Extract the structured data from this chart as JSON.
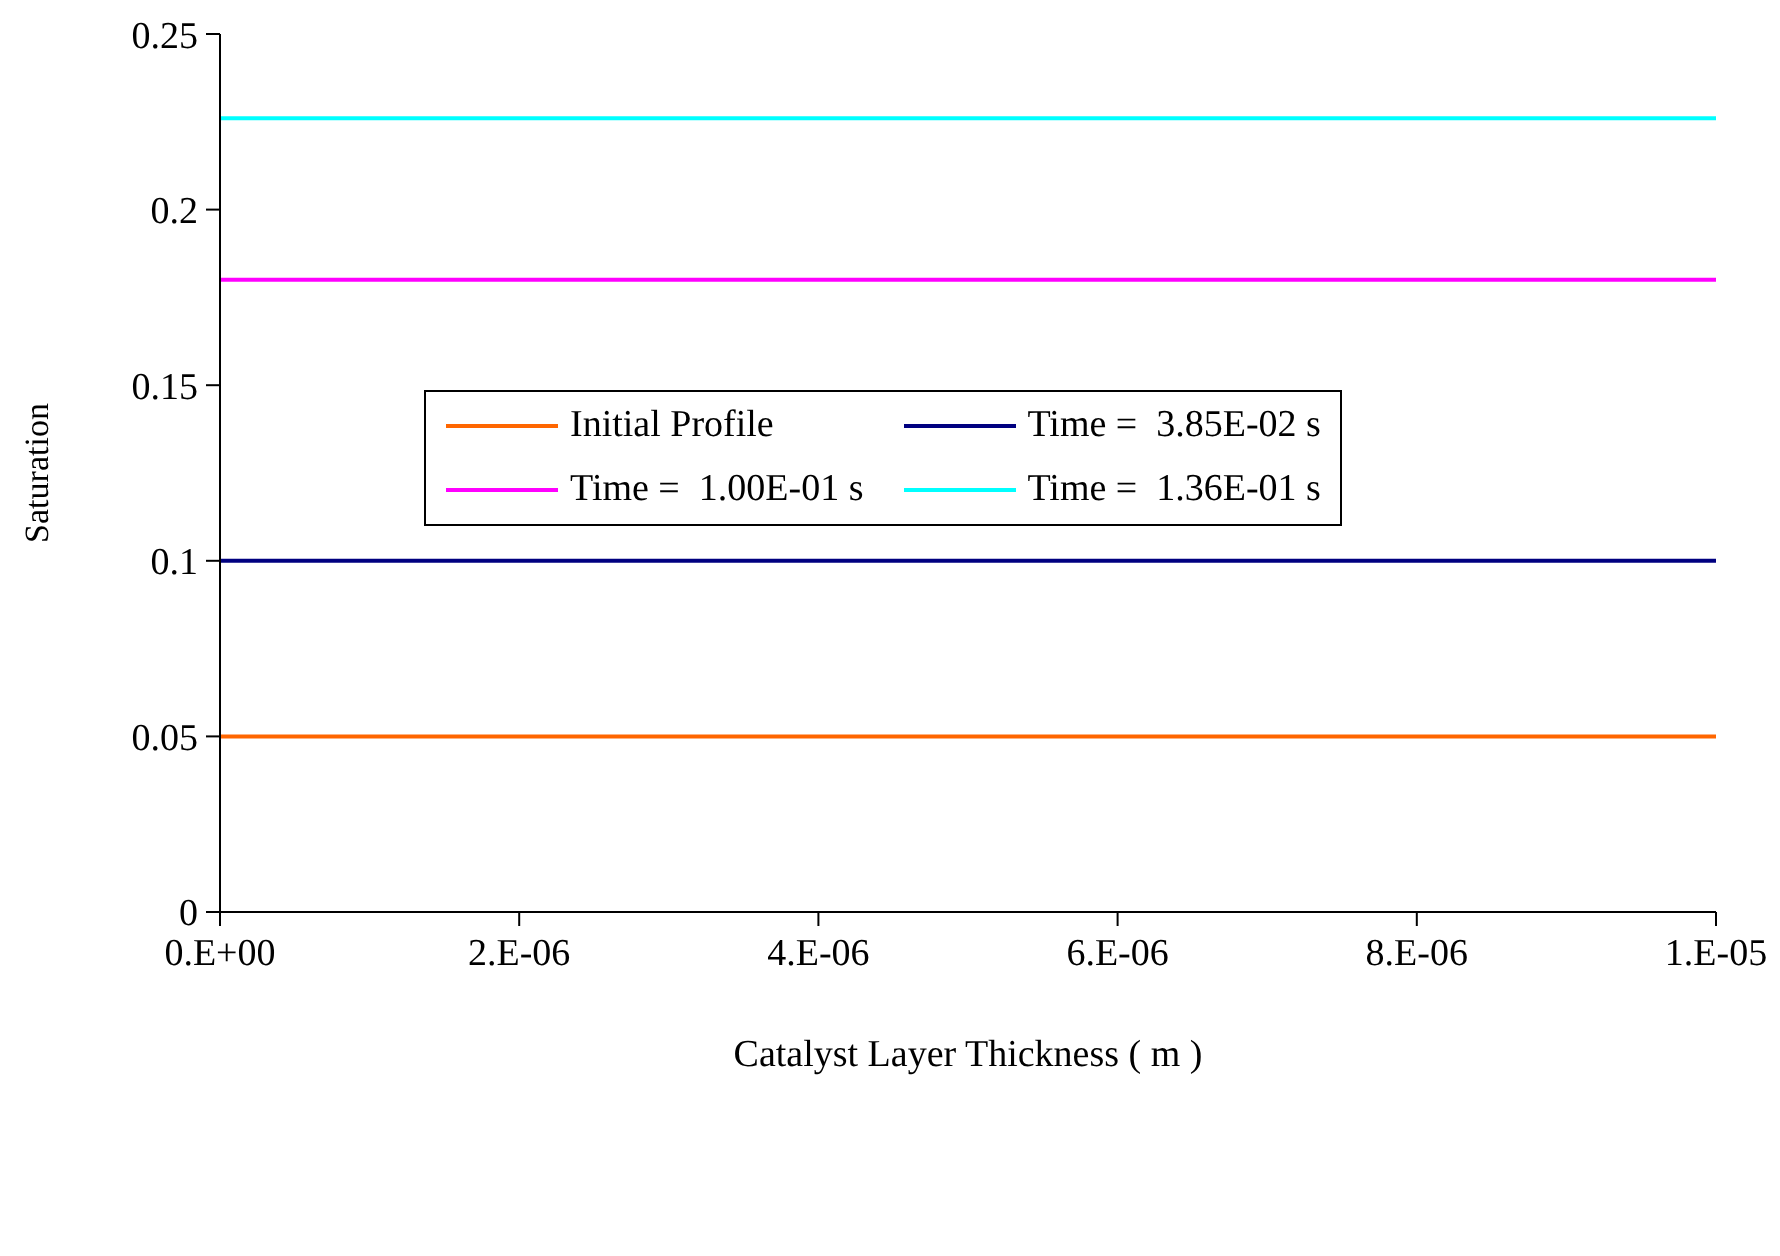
{
  "chart_data": {
    "type": "line",
    "xlabel": "Catalyst Layer Thickness ( m )",
    "ylabel": "Saturation",
    "categories": [
      "0.E+00",
      "2.E-06",
      "4.E-06",
      "6.E-06",
      "8.E-06",
      "1.E-05"
    ],
    "ylim": [
      0,
      0.25
    ],
    "yticks": [
      0,
      0.05,
      0.1,
      0.15,
      0.2,
      0.25
    ],
    "grid": false,
    "legend": "center",
    "marker": "none",
    "line_style": "solid",
    "series": [
      {
        "name": "Initial Profile",
        "color": "#ff6600",
        "values": [
          0.05,
          0.05,
          0.05,
          0.05,
          0.05,
          0.05
        ]
      },
      {
        "name": "Time =  3.85E-02 s",
        "color": "#000080",
        "values": [
          0.1,
          0.1,
          0.1,
          0.1,
          0.1,
          0.1
        ]
      },
      {
        "name": "Time =  1.00E-01 s",
        "color": "#ff00ff",
        "values": [
          0.18,
          0.18,
          0.18,
          0.18,
          0.18,
          0.18
        ]
      },
      {
        "name": "Time =  1.36E-01 s",
        "color": "#00ffff",
        "values": [
          0.226,
          0.226,
          0.226,
          0.226,
          0.226,
          0.226
        ]
      }
    ]
  }
}
